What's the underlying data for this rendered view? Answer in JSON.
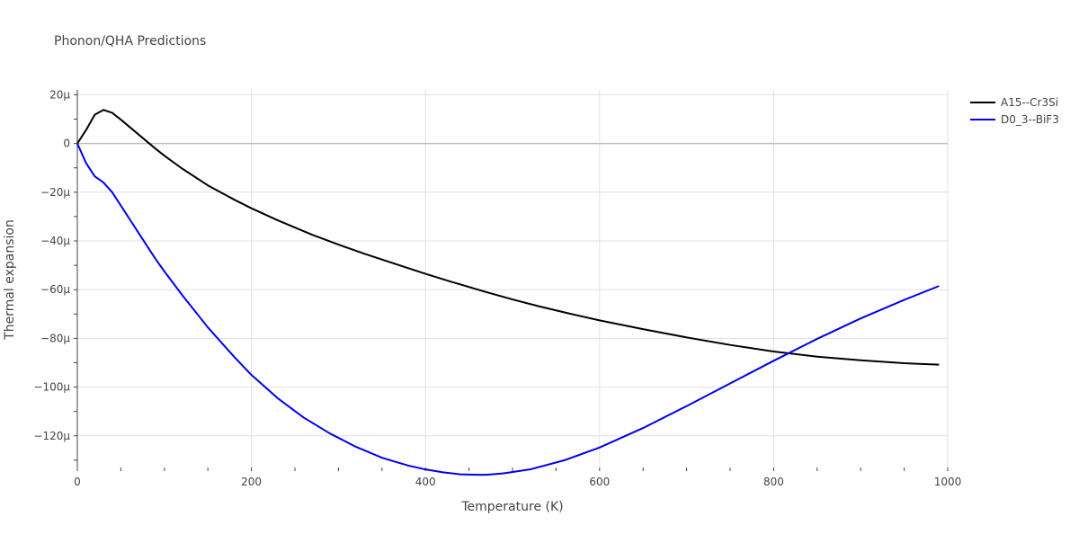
{
  "chart_data": {
    "type": "line",
    "title": "Phonon/QHA Predictions",
    "xlabel": "Temperature (K)",
    "ylabel": "Thermal expansion",
    "xlim": [
      0,
      1000
    ],
    "ylim": [
      -133,
      22
    ],
    "x_ticks": [
      0,
      200,
      400,
      600,
      800,
      1000
    ],
    "x_tick_labels": [
      "0",
      "200",
      "400",
      "600",
      "800",
      "1000"
    ],
    "y_ticks": [
      20,
      0,
      -20,
      -40,
      -60,
      -80,
      -100,
      -120
    ],
    "y_tick_labels": [
      "20μ",
      "0",
      "−20μ",
      "−40μ",
      "−60μ",
      "−80μ",
      "−100μ",
      "−120μ"
    ],
    "grid": true,
    "legend_position": "top-right",
    "series": [
      {
        "name": "A15--Cr3Si",
        "color": "#000000",
        "x": [
          0,
          10,
          20,
          30,
          40,
          50,
          60,
          70,
          80,
          90,
          100,
          120,
          150,
          180,
          200,
          230,
          270,
          300,
          330,
          370,
          400,
          430,
          470,
          500,
          530,
          570,
          600,
          650,
          700,
          750,
          800,
          850,
          900,
          950,
          990
        ],
        "y": [
          0,
          5.5,
          11.8,
          13.8,
          12.6,
          9.8,
          6.8,
          3.8,
          0.8,
          -2.2,
          -5,
          -10.2,
          -17.2,
          -23,
          -26.6,
          -31.5,
          -37.5,
          -41.5,
          -45.3,
          -50,
          -53.5,
          -56.8,
          -61,
          -64,
          -66.8,
          -70.2,
          -72.6,
          -76.2,
          -79.6,
          -82.7,
          -85.4,
          -87.5,
          -89,
          -90.2,
          -90.8
        ]
      },
      {
        "name": "D0_3--BiF3",
        "color": "#0000ee",
        "x": [
          0,
          10,
          20,
          30,
          40,
          50,
          60,
          70,
          80,
          90,
          100,
          120,
          150,
          180,
          200,
          230,
          260,
          290,
          320,
          350,
          380,
          400,
          420,
          440,
          460,
          470,
          490,
          520,
          560,
          600,
          650,
          700,
          750,
          800,
          850,
          900,
          950,
          990
        ],
        "y": [
          0,
          -8,
          -13.5,
          -16,
          -20,
          -25.5,
          -31,
          -36.5,
          -42,
          -47.5,
          -52.5,
          -62,
          -75.5,
          -87.5,
          -95,
          -104.5,
          -112.5,
          -119,
          -124.5,
          -129,
          -132.2,
          -133.8,
          -135,
          -135.8,
          -136,
          -136,
          -135.4,
          -133.8,
          -130,
          -124.8,
          -116.8,
          -107.8,
          -98.5,
          -89.2,
          -80.2,
          -71.8,
          -64.2,
          -58.5
        ]
      }
    ]
  }
}
